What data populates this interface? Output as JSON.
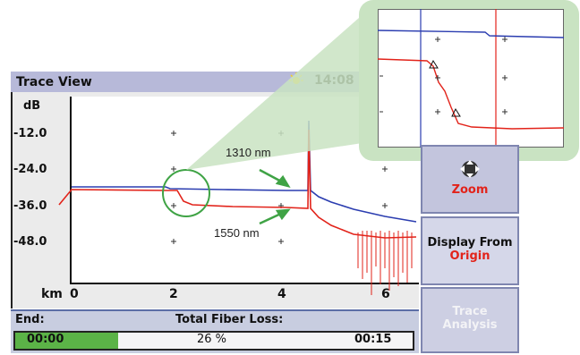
{
  "window": {
    "title": "Trace View",
    "time": "14:08"
  },
  "plot": {
    "y_unit": "dB",
    "y_ticks": [
      "-12.0",
      "-24.0",
      "-36.0",
      "-48.0"
    ],
    "x_unit": "km",
    "x_ticks": [
      "0",
      "2",
      "4",
      "6"
    ]
  },
  "annotations": {
    "trace_1310": "1310 nm",
    "trace_1550": "1550 nm"
  },
  "buttons": {
    "zoom": {
      "label": "Zoom"
    },
    "display_from": {
      "label": "Display From",
      "value": "Origin"
    },
    "trace_analysis": {
      "line1": "Trace",
      "line2": "Analysis"
    }
  },
  "status": {
    "end_label": "End:",
    "total_loss_label": "Total Fiber Loss:",
    "elapsed": "00:00",
    "progress_percent": "26 %",
    "progress_fraction": 0.26,
    "total_time": "00:15"
  },
  "colors": {
    "trace_1310": "#2b3db0",
    "trace_1550": "#e2231a",
    "callout": "#c9e3c2",
    "circle": "#3fa345",
    "progress": "#5bb347"
  },
  "icons": {
    "zoom": "directional-pad-icon",
    "status": "sun-icon"
  }
}
